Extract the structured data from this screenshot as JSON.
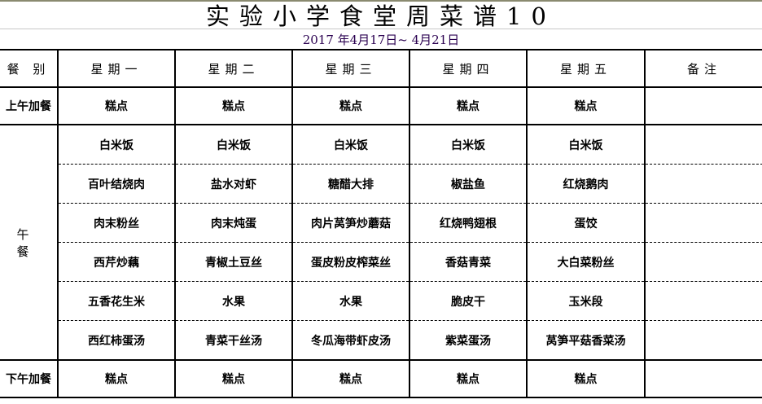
{
  "title": "实验小学食堂周菜谱10",
  "date_range": "2017 年4月17日~ 4月21日",
  "headers": [
    "餐 别",
    "星期一",
    "星期二",
    "星期三",
    "星期四",
    "星期五",
    "备注"
  ],
  "morning": {
    "label": "上午加餐",
    "items": [
      "糕点",
      "糕点",
      "糕点",
      "糕点",
      "糕点"
    ],
    "note": ""
  },
  "lunch": {
    "label": "午 餐",
    "rows": [
      [
        "白米饭",
        "白米饭",
        "白米饭",
        "白米饭",
        "白米饭"
      ],
      [
        "百叶结烧肉",
        "盐水对虾",
        "糖醋大排",
        "椒盐鱼",
        "红烧鹅肉"
      ],
      [
        "肉末粉丝",
        "肉末炖蛋",
        "肉片莴笋炒蘑菇",
        "红烧鸭翅根",
        "蛋饺"
      ],
      [
        "西芹炒藕",
        "青椒土豆丝",
        "蛋皮粉皮榨菜丝",
        "香菇青菜",
        "大白菜粉丝"
      ],
      [
        "五香花生米",
        "水果",
        "水果",
        "脆皮干",
        "玉米段"
      ],
      [
        "西红柿蛋汤",
        "青菜干丝汤",
        "冬瓜海带虾皮汤",
        "紫菜蛋汤",
        "莴笋平菇香菜汤"
      ]
    ]
  },
  "afternoon": {
    "label": "下午加餐",
    "items": [
      "糕点",
      "糕点",
      "糕点",
      "糕点",
      "糕点"
    ],
    "note": ""
  }
}
